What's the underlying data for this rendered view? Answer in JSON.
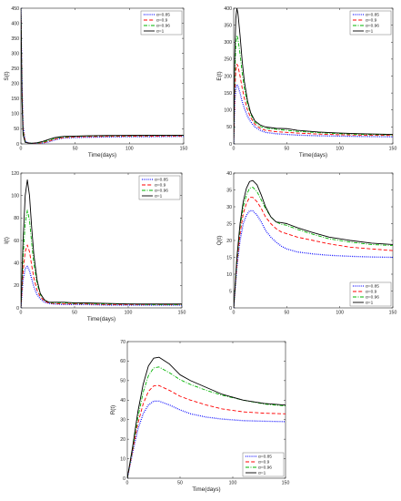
{
  "chart_data": [
    {
      "type": "line",
      "xlabel": "Time(days)",
      "ylabel": "S(t)",
      "xlim": [
        0,
        150
      ],
      "ylim": [
        0,
        450
      ],
      "xticks": [
        0,
        50,
        100,
        150
      ],
      "yticks": [
        0,
        50,
        100,
        150,
        200,
        250,
        300,
        350,
        400,
        450
      ],
      "grid": false,
      "legend_position": "top-right",
      "series": [
        {
          "name": "α=0.85",
          "color": "#0000ff",
          "dash": "dotted",
          "x": [
            0,
            1,
            2,
            4,
            7,
            10,
            15,
            20,
            25,
            30,
            35,
            40,
            50,
            60,
            80,
            100,
            120,
            150
          ],
          "y": [
            450,
            200,
            60,
            8,
            3,
            2,
            2,
            3,
            6,
            12,
            17,
            20,
            21,
            22,
            23,
            24,
            24,
            25
          ]
        },
        {
          "name": "α=0.9",
          "color": "#ff0000",
          "dash": "dashed",
          "x": [
            0,
            1,
            2,
            4,
            7,
            10,
            15,
            20,
            25,
            30,
            35,
            40,
            50,
            60,
            80,
            100,
            120,
            150
          ],
          "y": [
            450,
            180,
            50,
            7,
            3,
            2,
            2,
            4,
            8,
            14,
            19,
            21,
            23,
            24,
            25,
            25.5,
            26,
            26.5
          ]
        },
        {
          "name": "α=0.96",
          "color": "#00b400",
          "dash": "dashdot",
          "x": [
            0,
            1,
            2,
            4,
            7,
            10,
            15,
            20,
            25,
            30,
            35,
            40,
            50,
            60,
            80,
            100,
            120,
            150
          ],
          "y": [
            450,
            160,
            40,
            6,
            3,
            2,
            3,
            6,
            11,
            17,
            21,
            23,
            25,
            26,
            27,
            27.5,
            28,
            28
          ]
        },
        {
          "name": "α=1",
          "color": "#000000",
          "dash": "solid",
          "x": [
            0,
            1,
            2,
            4,
            7,
            10,
            15,
            20,
            25,
            30,
            35,
            40,
            50,
            60,
            80,
            100,
            120,
            150
          ],
          "y": [
            450,
            140,
            30,
            5,
            3,
            2,
            4,
            8,
            14,
            20,
            23,
            25,
            26,
            27,
            28,
            28.5,
            29,
            29
          ]
        }
      ]
    },
    {
      "type": "line",
      "xlabel": "Time(days)",
      "ylabel": "E(t)",
      "xlim": [
        0,
        150
      ],
      "ylim": [
        0,
        400
      ],
      "xticks": [
        0,
        50,
        100,
        150
      ],
      "yticks": [
        0,
        50,
        100,
        150,
        200,
        250,
        300,
        350,
        400
      ],
      "grid": false,
      "legend_position": "top-right",
      "series": [
        {
          "name": "α=0.85",
          "color": "#0000ff",
          "dash": "dotted",
          "x": [
            0,
            1,
            2,
            3,
            4,
            6,
            8,
            10,
            13,
            16,
            20,
            25,
            30,
            40,
            50,
            60,
            80,
            100,
            120,
            150
          ],
          "y": [
            0,
            120,
            165,
            175,
            170,
            150,
            125,
            105,
            82,
            65,
            50,
            40,
            34,
            30,
            28,
            26,
            24,
            23,
            22,
            21
          ]
        },
        {
          "name": "α=0.9",
          "color": "#ff0000",
          "dash": "dashed",
          "x": [
            0,
            1,
            2,
            3,
            4,
            6,
            8,
            10,
            13,
            16,
            20,
            25,
            30,
            40,
            50,
            60,
            80,
            100,
            120,
            150
          ],
          "y": [
            0,
            150,
            215,
            235,
            230,
            200,
            165,
            135,
            100,
            78,
            58,
            46,
            40,
            36,
            34,
            32,
            29,
            27,
            26,
            25
          ]
        },
        {
          "name": "α=0.96",
          "color": "#00b400",
          "dash": "dashdot",
          "x": [
            0,
            1,
            2,
            3,
            4,
            6,
            8,
            10,
            13,
            16,
            20,
            25,
            30,
            40,
            50,
            60,
            80,
            100,
            120,
            150
          ],
          "y": [
            0,
            200,
            290,
            320,
            310,
            265,
            210,
            165,
            118,
            88,
            64,
            52,
            46,
            43,
            40,
            37,
            33,
            30,
            28,
            27
          ]
        },
        {
          "name": "α=1",
          "color": "#000000",
          "dash": "solid",
          "x": [
            0,
            1,
            2,
            3,
            4,
            6,
            8,
            10,
            13,
            16,
            20,
            25,
            30,
            40,
            50,
            60,
            80,
            100,
            120,
            150
          ],
          "y": [
            0,
            260,
            370,
            400,
            385,
            320,
            245,
            185,
            128,
            92,
            68,
            56,
            50,
            46,
            45,
            40,
            35,
            32,
            30,
            28
          ]
        }
      ]
    },
    {
      "type": "line",
      "xlabel": "Time(days)",
      "ylabel": "I(t)",
      "xlim": [
        0,
        150
      ],
      "ylim": [
        0,
        120
      ],
      "xticks": [
        0,
        50,
        100,
        150
      ],
      "yticks": [
        0,
        20,
        40,
        60,
        80,
        100,
        120
      ],
      "grid": false,
      "legend_position": "top-right",
      "series": [
        {
          "name": "α=0.85",
          "color": "#0000ff",
          "dash": "dotted",
          "x": [
            0,
            2,
            4,
            6,
            8,
            10,
            12,
            15,
            18,
            22,
            26,
            30,
            40,
            50,
            60,
            80,
            100,
            120,
            150
          ],
          "y": [
            0,
            25,
            35,
            37,
            33,
            26,
            19,
            12,
            8,
            5,
            4,
            3.5,
            3,
            3,
            3,
            2.5,
            2.5,
            2.5,
            2.5
          ]
        },
        {
          "name": "α=0.9",
          "color": "#ff0000",
          "dash": "dashed",
          "x": [
            0,
            2,
            4,
            6,
            8,
            10,
            12,
            15,
            18,
            22,
            26,
            30,
            40,
            50,
            60,
            80,
            100,
            120,
            150
          ],
          "y": [
            0,
            32,
            50,
            56,
            50,
            38,
            27,
            16,
            10,
            6,
            4.5,
            4,
            3.5,
            3.5,
            3.5,
            3,
            3,
            3,
            3
          ]
        },
        {
          "name": "α=0.96",
          "color": "#00b400",
          "dash": "dashdot",
          "x": [
            0,
            2,
            4,
            6,
            8,
            10,
            12,
            15,
            18,
            22,
            26,
            30,
            40,
            50,
            60,
            80,
            100,
            120,
            150
          ],
          "y": [
            0,
            45,
            75,
            87,
            78,
            58,
            40,
            22,
            12,
            7,
            5,
            4.5,
            4.5,
            4,
            4,
            3.5,
            3.5,
            3,
            3
          ]
        },
        {
          "name": "α=1",
          "color": "#000000",
          "dash": "solid",
          "x": [
            0,
            2,
            4,
            6,
            8,
            10,
            12,
            15,
            18,
            22,
            26,
            30,
            40,
            50,
            60,
            80,
            100,
            120,
            150
          ],
          "y": [
            0,
            60,
            100,
            114,
            100,
            72,
            48,
            25,
            13,
            7,
            5,
            5,
            5,
            4.5,
            4.5,
            4,
            3.5,
            3.5,
            3.5
          ]
        }
      ]
    },
    {
      "type": "line",
      "xlabel": "",
      "ylabel": "Q(t)",
      "xlim": [
        0,
        150
      ],
      "ylim": [
        0,
        40
      ],
      "xticks": [
        0,
        50,
        100,
        150
      ],
      "yticks": [
        0,
        5,
        10,
        15,
        20,
        25,
        30,
        35,
        40
      ],
      "grid": false,
      "legend_position": "bottom-right",
      "series": [
        {
          "name": "α=0.85",
          "color": "#0000ff",
          "dash": "dotted",
          "x": [
            0,
            3,
            6,
            9,
            12,
            15,
            18,
            22,
            26,
            30,
            35,
            40,
            45,
            50,
            60,
            75,
            90,
            110,
            130,
            150
          ],
          "y": [
            0,
            12,
            20,
            25,
            27.5,
            28.8,
            28.8,
            27.5,
            25.5,
            23,
            21,
            19.5,
            18.3,
            17.5,
            16.6,
            16,
            15.6,
            15.3,
            15.1,
            15
          ]
        },
        {
          "name": "α=0.9",
          "color": "#ff0000",
          "dash": "dashed",
          "x": [
            0,
            3,
            6,
            9,
            12,
            15,
            18,
            22,
            26,
            30,
            35,
            40,
            45,
            50,
            60,
            75,
            90,
            110,
            130,
            150
          ],
          "y": [
            0,
            13,
            22,
            28,
            31,
            32.8,
            32.8,
            31.5,
            29.5,
            27,
            25,
            23.5,
            22.5,
            22,
            21,
            20,
            19,
            18,
            17.5,
            17
          ]
        },
        {
          "name": "α=0.96",
          "color": "#00b400",
          "dash": "dashdot",
          "x": [
            0,
            3,
            6,
            9,
            12,
            15,
            18,
            22,
            26,
            30,
            35,
            40,
            45,
            50,
            60,
            75,
            90,
            110,
            130,
            150
          ],
          "y": [
            0,
            14,
            24,
            30,
            33.5,
            35.5,
            35.8,
            34.5,
            32,
            29.5,
            27,
            25.5,
            24.8,
            24.5,
            23.3,
            21.8,
            20.5,
            19.5,
            18.8,
            18.5
          ]
        },
        {
          "name": "α=1",
          "color": "#000000",
          "dash": "solid",
          "x": [
            0,
            3,
            6,
            9,
            12,
            15,
            18,
            22,
            26,
            30,
            35,
            40,
            45,
            50,
            60,
            75,
            90,
            110,
            130,
            150
          ],
          "y": [
            0,
            15,
            25,
            31.5,
            35.5,
            37.5,
            37.8,
            36.5,
            33.5,
            30,
            27,
            25.5,
            25.3,
            25,
            23.8,
            22.3,
            21,
            20,
            19.2,
            18.8
          ]
        }
      ]
    },
    {
      "type": "line",
      "xlabel": "Time(days)",
      "ylabel": "R(t)",
      "xlim": [
        0,
        150
      ],
      "ylim": [
        0,
        70
      ],
      "xticks": [
        0,
        50,
        100,
        150
      ],
      "yticks": [
        0,
        10,
        20,
        30,
        40,
        50,
        60,
        70
      ],
      "grid": false,
      "legend_position": "bottom-right",
      "series": [
        {
          "name": "α=0.85",
          "color": "#0000ff",
          "dash": "dotted",
          "x": [
            0,
            5,
            10,
            15,
            20,
            25,
            30,
            40,
            50,
            60,
            75,
            90,
            110,
            130,
            150
          ],
          "y": [
            0,
            13,
            25,
            33,
            37.5,
            39.5,
            39.5,
            37.5,
            35,
            33,
            31.3,
            30.3,
            29.5,
            29.2,
            29
          ]
        },
        {
          "name": "α=0.9",
          "color": "#ff0000",
          "dash": "dashed",
          "x": [
            0,
            5,
            10,
            15,
            20,
            25,
            30,
            40,
            50,
            60,
            75,
            90,
            110,
            130,
            150
          ],
          "y": [
            0,
            14,
            28,
            38,
            44.5,
            47.3,
            47.5,
            45,
            42,
            40,
            37.5,
            35.5,
            34,
            33.3,
            33
          ]
        },
        {
          "name": "α=0.96",
          "color": "#00b400",
          "dash": "dashdot",
          "x": [
            0,
            5,
            10,
            15,
            20,
            25,
            30,
            40,
            50,
            60,
            75,
            90,
            110,
            130,
            150
          ],
          "y": [
            0,
            15,
            31,
            44,
            52.5,
            56.5,
            57,
            54,
            50.5,
            48,
            45,
            42.5,
            40,
            38,
            37
          ]
        },
        {
          "name": "α=1",
          "color": "#000000",
          "dash": "solid",
          "x": [
            0,
            5,
            10,
            15,
            20,
            25,
            30,
            40,
            50,
            60,
            75,
            90,
            110,
            130,
            150
          ],
          "y": [
            0,
            16,
            34,
            48,
            57.5,
            61.5,
            62,
            58.5,
            53,
            50,
            46.5,
            43,
            40,
            38.3,
            37.5
          ]
        }
      ]
    }
  ]
}
